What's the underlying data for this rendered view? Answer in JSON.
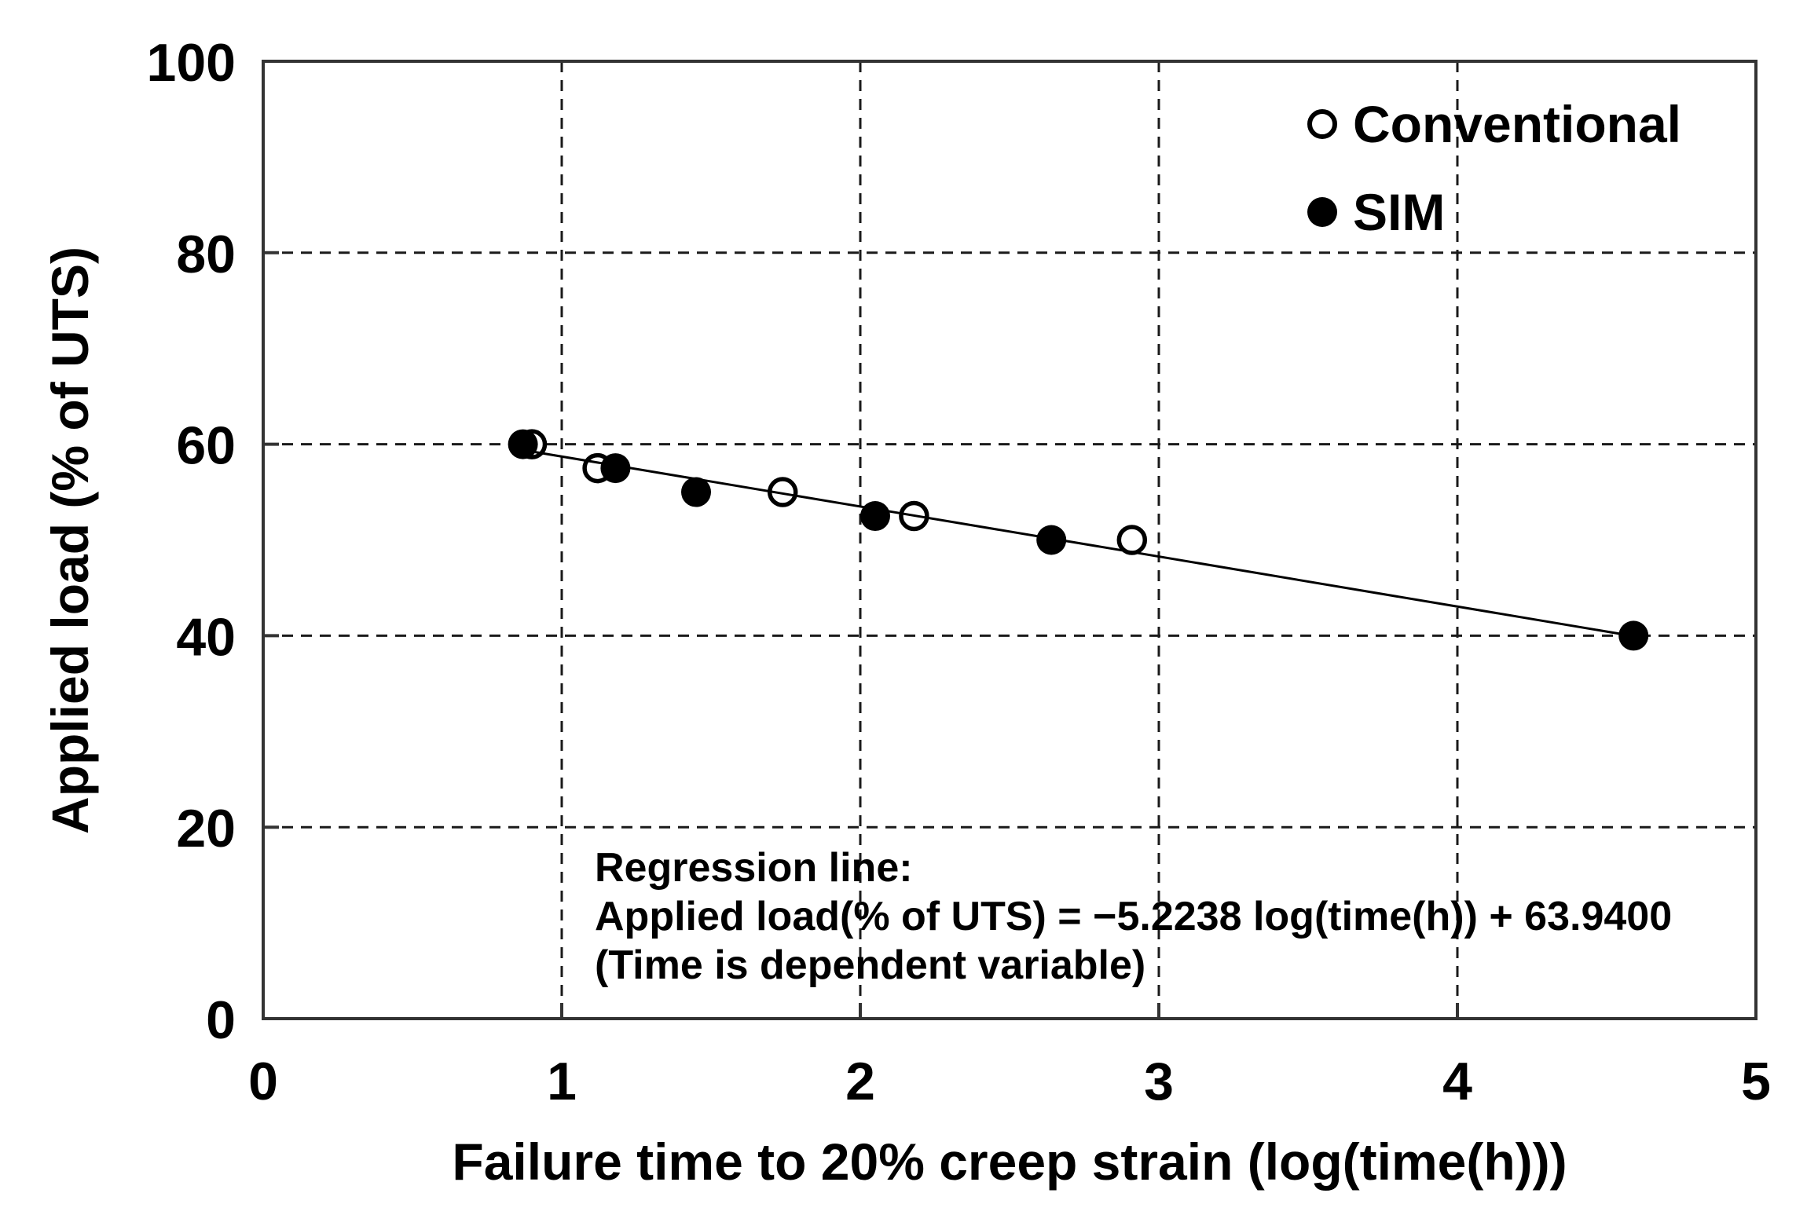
{
  "chart_data": {
    "type": "scatter",
    "title": "",
    "xlabel": "Failure time to 20% creep strain (log(time(h)))",
    "ylabel": "Applied load (% of UTS)",
    "xlim": [
      0,
      5
    ],
    "ylim": [
      0,
      100
    ],
    "x_ticks": [
      0,
      1,
      2,
      3,
      4,
      5
    ],
    "y_ticks": [
      0,
      20,
      40,
      60,
      80,
      100
    ],
    "grid": "dashed-both-axes-interior",
    "legend_position": "top-right-inside",
    "series": [
      {
        "name": "Conventional",
        "marker": "open-circle",
        "points": [
          [
            0.9,
            60
          ],
          [
            1.12,
            57.5
          ],
          [
            1.74,
            55
          ],
          [
            2.18,
            52.5
          ],
          [
            2.91,
            50
          ]
        ]
      },
      {
        "name": "SIM",
        "marker": "filled-circle",
        "points": [
          [
            0.87,
            60
          ],
          [
            1.18,
            57.5
          ],
          [
            1.45,
            55
          ],
          [
            2.05,
            52.5
          ],
          [
            2.64,
            50
          ],
          [
            4.59,
            40
          ]
        ]
      }
    ],
    "regression_line": {
      "slope": -5.2238,
      "intercept": 63.94,
      "x_start": 0.87,
      "x_end": 4.59
    },
    "annotation": {
      "line1": "Regression line:",
      "line2": "Applied load(% of UTS) = −5.2238 log(time(h)) + 63.9400",
      "line3": "(Time is dependent variable)"
    }
  },
  "colors": {
    "ink": "#000000",
    "plot_border": "#333333",
    "gridline": "#1a1a1a",
    "marker_fill": "#000000",
    "open_marker_fill": "#ffffff",
    "background": "#ffffff"
  }
}
